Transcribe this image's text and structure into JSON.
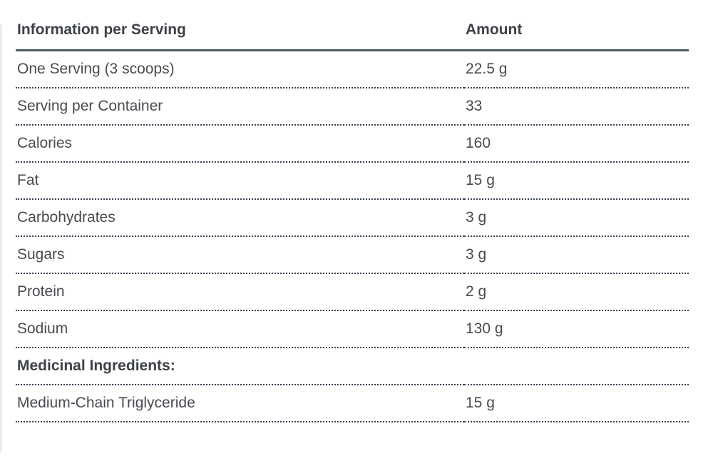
{
  "table": {
    "columns": [
      {
        "label": "Information per Serving"
      },
      {
        "label": "Amount"
      }
    ],
    "rows": [
      {
        "label": "One Serving (3 scoops)",
        "amount": "22.5 g",
        "section": false
      },
      {
        "label": "Serving per Container",
        "amount": "33",
        "section": false
      },
      {
        "label": "Calories",
        "amount": "160",
        "section": false
      },
      {
        "label": "Fat",
        "amount": "15 g",
        "section": false
      },
      {
        "label": "Carbohydrates",
        "amount": "3 g",
        "section": false
      },
      {
        "label": "Sugars",
        "amount": "3 g",
        "section": false
      },
      {
        "label": "Protein",
        "amount": "2 g",
        "section": false
      },
      {
        "label": "Sodium",
        "amount": "130 g",
        "section": false
      },
      {
        "label": "Medicinal Ingredients:",
        "amount": "",
        "section": true
      },
      {
        "label": "Medium-Chain Triglyceride",
        "amount": "15 g",
        "section": false
      }
    ]
  },
  "colors": {
    "accent_line": "#4d5866",
    "dotted_line": "#36414f",
    "text": "#474b50",
    "heading_text": "#3e4247",
    "edge_strip": "#ececec"
  }
}
